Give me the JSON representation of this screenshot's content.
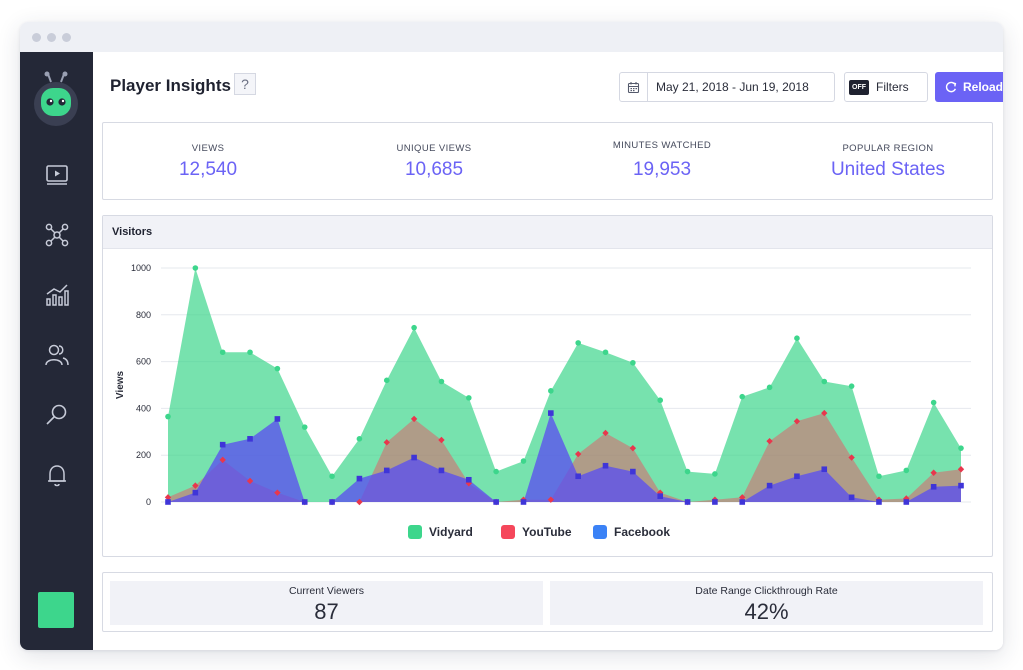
{
  "page": {
    "title": "Player Insights",
    "help_label": "?",
    "date_range": "May 21, 2018 - Jun 19, 2018",
    "filters_toggle": "OFF",
    "filters_label": "Filters",
    "reload_label": "Reload"
  },
  "colors": {
    "accent": "#6b63f5",
    "sidebar": "#242837",
    "vidyard": "#3dd68c",
    "youtube": "#f5475b",
    "facebook": "#3b82f6"
  },
  "sidebar": {
    "items": [
      {
        "icon": "video-icon"
      },
      {
        "icon": "network-icon"
      },
      {
        "icon": "analytics-icon"
      },
      {
        "icon": "users-icon"
      },
      {
        "icon": "search-icon"
      },
      {
        "icon": "bell-icon"
      }
    ]
  },
  "stats": [
    {
      "label": "VIEWS",
      "value": "12,540"
    },
    {
      "label": "UNIQUE VIEWS",
      "value": "10,685"
    },
    {
      "label": "MINUTES WATCHED",
      "value": "19,953"
    },
    {
      "label": "POPULAR REGION",
      "value": "United States"
    }
  ],
  "chart_card": {
    "title": "Visitors"
  },
  "chart_data": {
    "type": "area",
    "ylabel": "Views",
    "xlabel": "",
    "ylim": [
      0,
      1000
    ],
    "yticks": [
      0,
      200,
      400,
      600,
      800,
      1000
    ],
    "grid": true,
    "legend_position": "bottom",
    "series": [
      {
        "name": "Vidyard",
        "color": "#3dd68c",
        "values": [
          365,
          1000,
          640,
          640,
          570,
          320,
          110,
          270,
          520,
          745,
          515,
          445,
          130,
          175,
          475,
          680,
          640,
          595,
          435,
          130,
          120,
          450,
          490,
          700,
          515,
          495,
          110,
          135,
          425,
          230
        ]
      },
      {
        "name": "YouTube",
        "color": "#f5475b",
        "values": [
          20,
          70,
          180,
          90,
          40,
          0,
          0,
          0,
          255,
          355,
          265,
          80,
          0,
          10,
          10,
          205,
          295,
          230,
          40,
          0,
          10,
          20,
          260,
          345,
          380,
          190,
          10,
          15,
          125,
          140
        ]
      },
      {
        "name": "Facebook",
        "color": "#3b82f6",
        "values": [
          0,
          40,
          245,
          270,
          355,
          0,
          0,
          100,
          135,
          190,
          135,
          95,
          0,
          0,
          380,
          110,
          155,
          130,
          25,
          0,
          0,
          0,
          70,
          110,
          140,
          20,
          0,
          0,
          65,
          70
        ]
      }
    ]
  },
  "bottom": [
    {
      "label": "Current Viewers",
      "value": "87"
    },
    {
      "label": "Date Range Clickthrough Rate",
      "value": "42%"
    }
  ]
}
